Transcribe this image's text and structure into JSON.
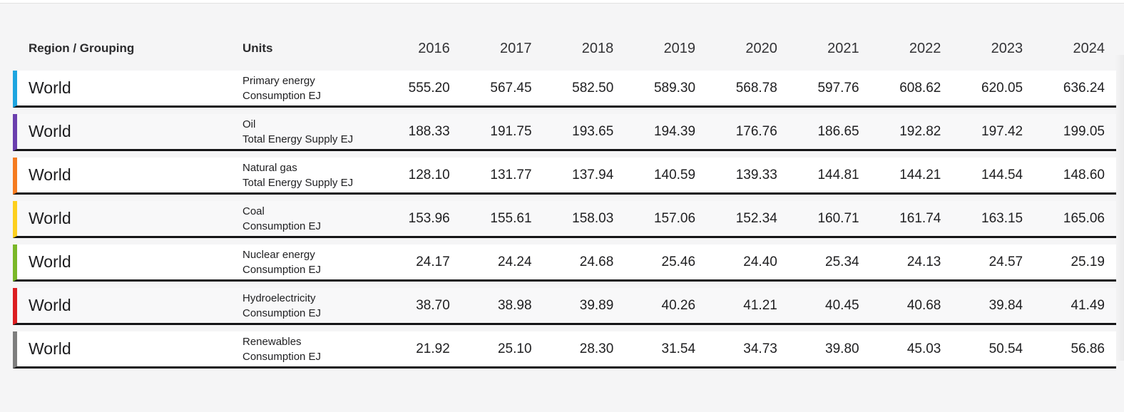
{
  "table": {
    "columns": {
      "region": "Region / Grouping",
      "units": "Units"
    },
    "years": [
      "2016",
      "2017",
      "2018",
      "2019",
      "2020",
      "2021",
      "2022",
      "2023",
      "2024"
    ],
    "rows": [
      {
        "region": "World",
        "unit_line1": "Primary energy",
        "unit_line2": "Consumption EJ",
        "accent": "#1ea5e0",
        "values": [
          "555.20",
          "567.45",
          "582.50",
          "589.30",
          "568.78",
          "597.76",
          "608.62",
          "620.05",
          "636.24"
        ]
      },
      {
        "region": "World",
        "unit_line1": "Oil",
        "unit_line2": "Total Energy Supply EJ",
        "accent": "#6b3fae",
        "values": [
          "188.33",
          "191.75",
          "193.65",
          "194.39",
          "176.76",
          "186.65",
          "192.82",
          "197.42",
          "199.05"
        ]
      },
      {
        "region": "World",
        "unit_line1": "Natural gas",
        "unit_line2": "Total Energy Supply EJ",
        "accent": "#f57b20",
        "values": [
          "128.10",
          "131.77",
          "137.94",
          "140.59",
          "139.33",
          "144.81",
          "144.21",
          "144.54",
          "148.60"
        ]
      },
      {
        "region": "World",
        "unit_line1": "Coal",
        "unit_line2": "Consumption EJ",
        "accent": "#fdd01e",
        "values": [
          "153.96",
          "155.61",
          "158.03",
          "157.06",
          "152.34",
          "160.71",
          "161.74",
          "163.15",
          "165.06"
        ]
      },
      {
        "region": "World",
        "unit_line1": "Nuclear energy",
        "unit_line2": "Consumption EJ",
        "accent": "#7ab828",
        "values": [
          "24.17",
          "24.24",
          "24.68",
          "25.46",
          "24.40",
          "25.34",
          "24.13",
          "24.57",
          "25.19"
        ]
      },
      {
        "region": "World",
        "unit_line1": "Hydroelectricity",
        "unit_line2": "Consumption EJ",
        "accent": "#dc1e21",
        "values": [
          "38.70",
          "38.98",
          "39.89",
          "40.26",
          "41.21",
          "40.45",
          "40.68",
          "39.84",
          "41.49"
        ]
      },
      {
        "region": "World",
        "unit_line1": "Renewables",
        "unit_line2": "Consumption EJ",
        "accent": "#7d7d7d",
        "values": [
          "21.92",
          "25.10",
          "28.30",
          "31.54",
          "34.73",
          "39.80",
          "45.03",
          "50.54",
          "56.86"
        ]
      }
    ]
  }
}
